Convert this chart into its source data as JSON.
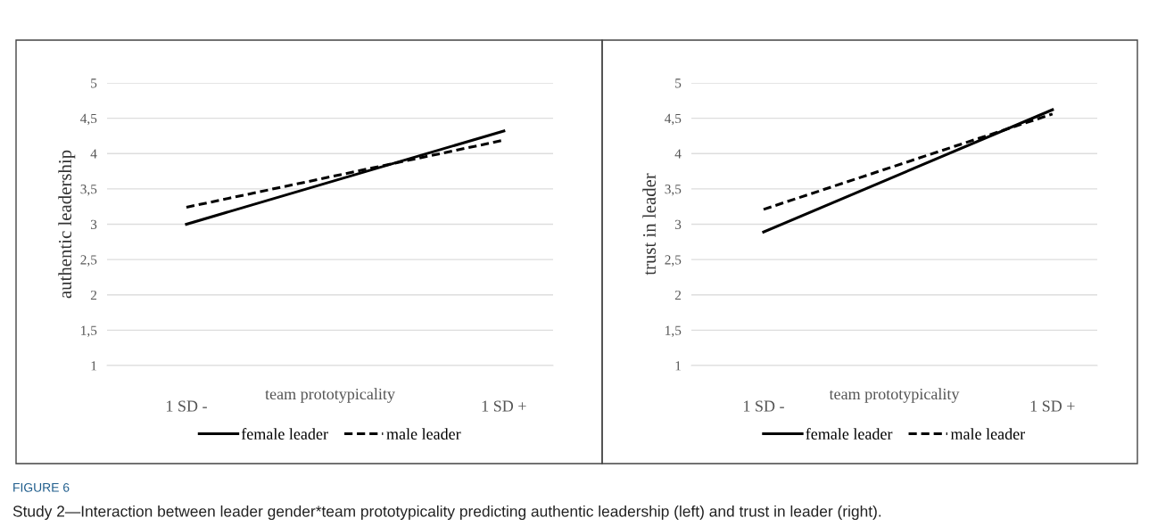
{
  "chart_data": [
    {
      "type": "line",
      "ylabel": "authentic leadership",
      "xlabel": "team prototypicality",
      "categories": [
        "1 SD -",
        "1 SD +"
      ],
      "series": [
        {
          "name": "female leader",
          "color": "#000000",
          "line_style": "solid",
          "values": [
            3.0,
            4.32
          ]
        },
        {
          "name": "male leader",
          "color": "#000000",
          "line_style": "dashed",
          "values": [
            3.24,
            4.19
          ]
        }
      ],
      "ylim": [
        1,
        5
      ],
      "yticks": [
        1,
        {
          "value": 1.5,
          "label": "1,5"
        },
        2,
        {
          "value": 2.5,
          "label": "2,5"
        },
        3,
        {
          "value": 3.5,
          "label": "3,5"
        },
        4,
        {
          "value": 4.5,
          "label": "4,5"
        },
        5
      ],
      "grid": "y",
      "legend": "bottom",
      "marker": "none",
      "annotations": [
        "FIGURE 6",
        "Study 2—Interaction between leader gender*team prototypicality predicting authentic leadership (left) and trust in leader (right)."
      ]
    },
    {
      "type": "line",
      "ylabel": "trust in leader",
      "xlabel": "team prototypicality",
      "categories": [
        "1 SD -",
        "1 SD +"
      ],
      "series": [
        {
          "name": "female leader",
          "color": "#000000",
          "line_style": "solid",
          "values": [
            2.89,
            4.62
          ]
        },
        {
          "name": "male leader",
          "color": "#000000",
          "line_style": "dashed",
          "values": [
            3.21,
            4.56
          ]
        }
      ],
      "ylim": [
        1,
        5
      ],
      "yticks": [
        1,
        {
          "value": 1.5,
          "label": "1,5"
        },
        2,
        {
          "value": 2.5,
          "label": "2,5"
        },
        3,
        {
          "value": 3.5,
          "label": "3,5"
        },
        4,
        {
          "value": 4.5,
          "label": "4,5"
        },
        5
      ],
      "grid": "y",
      "legend": "bottom",
      "marker": "none"
    }
  ]
}
